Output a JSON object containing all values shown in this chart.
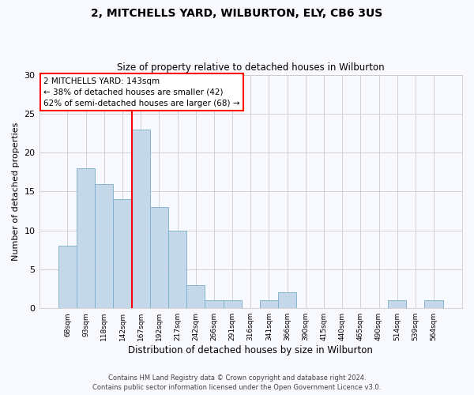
{
  "title1": "2, MITCHELLS YARD, WILBURTON, ELY, CB6 3US",
  "title2": "Size of property relative to detached houses in Wilburton",
  "xlabel": "Distribution of detached houses by size in Wilburton",
  "ylabel": "Number of detached properties",
  "categories": [
    "68sqm",
    "93sqm",
    "118sqm",
    "142sqm",
    "167sqm",
    "192sqm",
    "217sqm",
    "242sqm",
    "266sqm",
    "291sqm",
    "316sqm",
    "341sqm",
    "366sqm",
    "390sqm",
    "415sqm",
    "440sqm",
    "465sqm",
    "490sqm",
    "514sqm",
    "539sqm",
    "564sqm"
  ],
  "values": [
    8,
    18,
    16,
    14,
    23,
    13,
    10,
    3,
    1,
    1,
    0,
    1,
    2,
    0,
    0,
    0,
    0,
    0,
    1,
    0,
    1
  ],
  "bar_color": "#c5d8ea",
  "bar_edge_color": "#7aaec8",
  "vline_color": "red",
  "vline_x_index": 3.5,
  "annotation_text": "2 MITCHELLS YARD: 143sqm\n← 38% of detached houses are smaller (42)\n62% of semi-detached houses are larger (68) →",
  "annotation_box_color": "white",
  "annotation_box_edge_color": "red",
  "ylim": [
    0,
    30
  ],
  "yticks": [
    0,
    5,
    10,
    15,
    20,
    25,
    30
  ],
  "footer1": "Contains HM Land Registry data © Crown copyright and database right 2024.",
  "footer2": "Contains public sector information licensed under the Open Government Licence v3.0.",
  "bg_color": "#f8f8ff",
  "grid_color": "#cccccc"
}
